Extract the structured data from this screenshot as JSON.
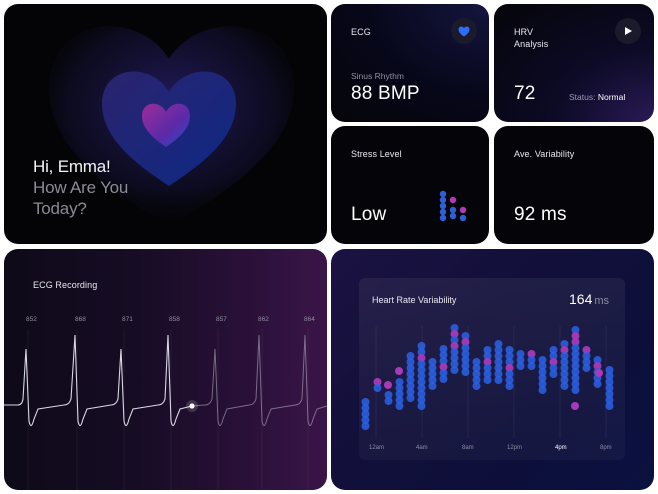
{
  "hero": {
    "line1": "Hi, Emma!",
    "line2": "How Are You",
    "line3": "Today?"
  },
  "ecg_card": {
    "title": "ECG",
    "sub": "Sinus Rhythm",
    "value": "88 BMP",
    "icon": "heart-icon"
  },
  "hrv_card": {
    "title_line1": "HRV",
    "title_line2": "Analysis",
    "value": "72",
    "status_label": "Status:",
    "status_value": "Normal",
    "icon": "play-icon"
  },
  "stress_card": {
    "title": "Stress Level",
    "value": "Low"
  },
  "variability_card": {
    "title": "Ave. Variability",
    "value": "92 ms"
  },
  "ecg_recording": {
    "title": "ECG Recording",
    "values": [
      "852",
      "868",
      "871",
      "858",
      "857",
      "862",
      "864"
    ]
  },
  "hrv_chart": {
    "title": "Heart Rate Variability",
    "value": "164",
    "unit": "ms",
    "x_labels": [
      "12am",
      "4am",
      "8am",
      "12pm",
      "4pm",
      "8pm"
    ],
    "highlight_label": "4pm"
  },
  "colors": {
    "accent_blue": "#2f6bff",
    "accent_magenta": "#b03ab8",
    "background": "#050509"
  }
}
